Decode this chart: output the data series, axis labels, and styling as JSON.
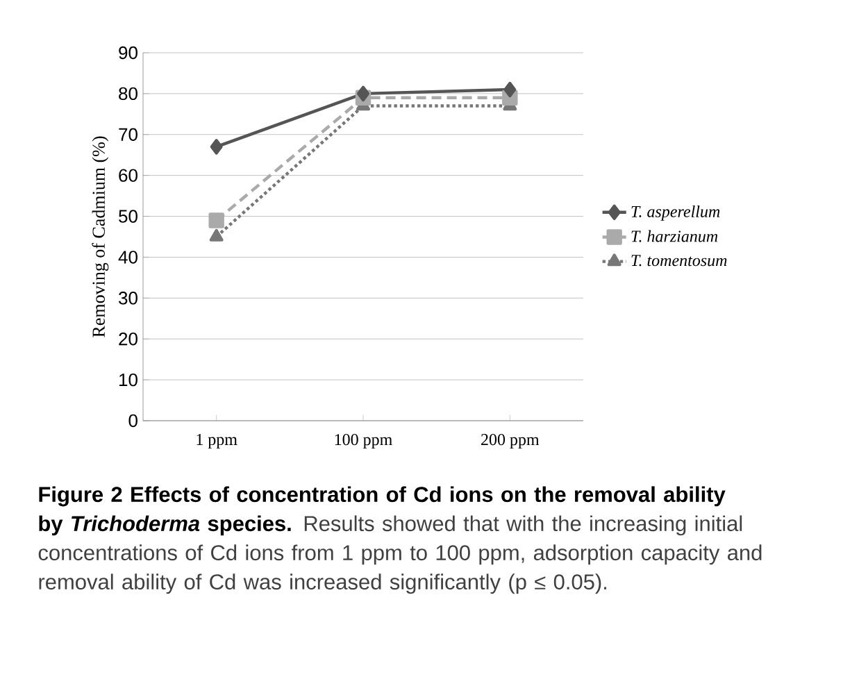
{
  "chart_data": {
    "type": "line",
    "title": "Figure 2 Effects of concentration of Cd ions on the removal ability by *Trichoderma* species.",
    "ylabel": "Removing of Cadmium (%)",
    "categories": [
      "1 ppm",
      "100 ppm",
      "200 ppm"
    ],
    "series": [
      {
        "name": "T. asperellum",
        "color": "#555555",
        "values": [
          67,
          80,
          81
        ],
        "marker": "diamond",
        "line_style": "solid"
      },
      {
        "name": "T. harzianum",
        "color": "#aaaaaa",
        "values": [
          49,
          79,
          79
        ],
        "marker": "square",
        "line_style": "dashed"
      },
      {
        "name": "T. tomentosum",
        "color": "#777777",
        "values": [
          45,
          77,
          77
        ],
        "marker": "triangle",
        "line_style": "dotted"
      }
    ],
    "ylim": [
      0,
      90
    ],
    "yticks": [
      0,
      10,
      20,
      30,
      40,
      50,
      60,
      70,
      80,
      90
    ],
    "grid": "y",
    "legend": "right",
    "annotations": [
      "Results showed that with the increasing initial concentrations of Cd ions from 1 ppm to 100 ppm, adsorption capacity and removal ability of Cd was increased significantly (p ≤ 0.05)."
    ]
  }
}
